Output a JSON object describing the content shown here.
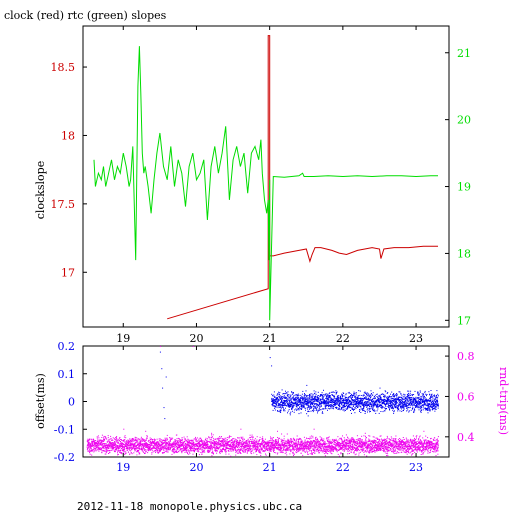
{
  "footer": "2012-11-18 monopole.physics.ubc.ca",
  "colors": {
    "clock": "#cc0000",
    "rtc": "#00dd00",
    "offset": "#0000ee",
    "rndtrip": "#ee00ee",
    "frame": "#000000"
  },
  "chart_data": [
    {
      "type": "line",
      "title": "clock (red) rtc (green) slopes",
      "xlabel": "",
      "ylabel": "clockslope",
      "xlim": [
        18.45,
        23.45
      ],
      "x_ticks": [
        "19",
        "20",
        "21",
        "22",
        "23"
      ],
      "ylim_left": [
        16.6,
        18.8
      ],
      "y_left_ticks": [
        "17",
        "17.5",
        "18",
        "18.5"
      ],
      "ylim_right": [
        16.9,
        21.4
      ],
      "y_right_ticks": [
        "17",
        "18",
        "19",
        "20",
        "21"
      ],
      "series": [
        {
          "axis": "left",
          "x": [
            19.6,
            20.98,
            20.98,
            21.0,
            21.0,
            21.05,
            21.2,
            21.4,
            21.5,
            21.55,
            21.58,
            21.62,
            21.7,
            21.85,
            21.95,
            22.05,
            22.2,
            22.4,
            22.5,
            22.52,
            22.56,
            22.7,
            22.9,
            23.1,
            23.3
          ],
          "y": [
            16.66,
            16.88,
            18.73,
            18.73,
            17.12,
            17.12,
            17.14,
            17.16,
            17.17,
            17.08,
            17.13,
            17.18,
            17.18,
            17.16,
            17.14,
            17.13,
            17.16,
            17.18,
            17.17,
            17.1,
            17.17,
            17.18,
            17.18,
            17.19,
            17.19
          ]
        },
        {
          "axis": "right",
          "x": [
            18.6,
            18.62,
            18.66,
            18.7,
            18.73,
            18.76,
            18.8,
            18.84,
            18.88,
            18.92,
            18.96,
            19.0,
            19.04,
            19.08,
            19.1,
            19.13,
            19.17,
            19.2,
            19.22,
            19.24,
            19.26,
            19.28,
            19.3,
            19.34,
            19.38,
            19.42,
            19.46,
            19.5,
            19.55,
            19.6,
            19.65,
            19.7,
            19.75,
            19.8,
            19.85,
            19.9,
            19.95,
            20.0,
            20.05,
            20.1,
            20.15,
            20.2,
            20.25,
            20.3,
            20.35,
            20.4,
            20.45,
            20.5,
            20.55,
            20.6,
            20.65,
            20.7,
            20.75,
            20.8,
            20.85,
            20.88,
            20.9,
            20.93,
            20.96,
            20.98,
            20.99,
            21.0,
            21.0,
            21.05,
            21.2,
            21.4,
            21.45,
            21.47,
            21.6,
            21.8,
            22.0,
            22.2,
            22.4,
            22.6,
            22.8,
            23.0,
            23.2,
            23.3
          ],
          "y": [
            19.4,
            19.0,
            19.2,
            19.1,
            19.3,
            19.0,
            19.2,
            19.4,
            19.1,
            19.3,
            19.2,
            19.5,
            19.3,
            19.0,
            19.1,
            19.6,
            17.9,
            20.5,
            21.1,
            20.4,
            19.5,
            19.2,
            19.3,
            19.0,
            18.6,
            19.1,
            19.5,
            19.8,
            19.3,
            19.1,
            19.6,
            19.0,
            19.4,
            19.2,
            18.7,
            19.3,
            19.5,
            19.1,
            19.2,
            19.4,
            18.5,
            19.3,
            19.6,
            19.2,
            19.5,
            19.9,
            18.8,
            19.4,
            19.6,
            19.3,
            19.5,
            18.9,
            19.5,
            19.6,
            19.4,
            19.7,
            19.2,
            18.8,
            18.6,
            18.8,
            17.9,
            19.1,
            17.0,
            19.15,
            19.14,
            19.16,
            19.2,
            19.15,
            19.15,
            19.16,
            19.15,
            19.16,
            19.15,
            19.16,
            19.16,
            19.15,
            19.16,
            19.16
          ]
        }
      ]
    },
    {
      "type": "scatter",
      "title": "",
      "xlabel": "",
      "ylabel": "offset(ms)",
      "ylabel_right": "rnd-trip(ms)",
      "xlim": [
        18.45,
        23.45
      ],
      "x_ticks": [
        "19",
        "20",
        "21",
        "22",
        "23"
      ],
      "ylim_left": [
        -0.2,
        0.2
      ],
      "y_left_ticks": [
        "-0.2",
        "-0.1",
        "0",
        "0.1",
        "0.2"
      ],
      "ylim_right": [
        0.3,
        0.85
      ],
      "y_right_ticks": [
        "0.4",
        "0.6",
        "0.8"
      ],
      "series": [
        {
          "axis": "left",
          "band": {
            "x_start": 21.02,
            "x_end": 23.3,
            "center": 0.0,
            "spread": 0.025
          },
          "outliers": {
            "x": [
              19.5,
              19.52,
              19.53,
              19.55,
              19.56,
              19.58,
              21.0,
              21.02,
              21.5,
              21.52,
              21.6,
              22.5,
              23.05
            ],
            "y": [
              0.18,
              0.12,
              0.05,
              -0.02,
              -0.06,
              0.09,
              0.16,
              0.13,
              0.06,
              -0.05,
              0.04,
              0.05,
              0.04
            ]
          }
        },
        {
          "axis": "right",
          "band": {
            "x_start": 18.5,
            "x_end": 23.3,
            "center": 0.36,
            "spread": 0.03
          },
          "outliers": {
            "x": [
              19.0,
              19.3,
              19.5,
              19.95,
              20.2,
              20.6,
              21.1,
              21.6,
              22.3,
              23.1
            ],
            "y": [
              0.44,
              0.43,
              0.85,
              0.85,
              0.42,
              0.44,
              0.43,
              0.44,
              0.42,
              0.43
            ]
          }
        }
      ]
    }
  ]
}
